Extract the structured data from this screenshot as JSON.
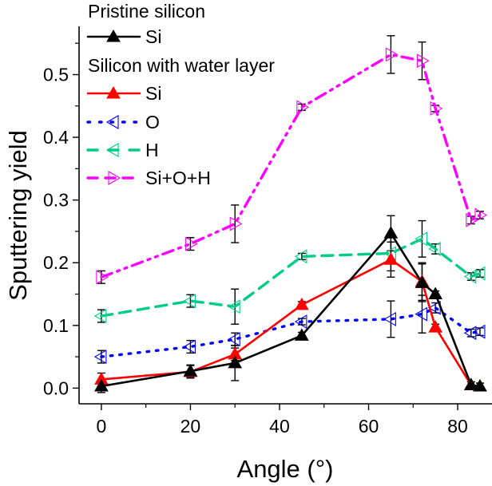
{
  "chart_data": {
    "type": "line",
    "title": "",
    "xlabel": "Angle (°)",
    "ylabel": "Sputtering yield",
    "xlim": [
      -5,
      87.7
    ],
    "ylim": [
      -0.025,
      0.577
    ],
    "xticks": [
      0,
      20,
      40,
      60,
      80
    ],
    "xtick_labels": [
      "0",
      "20",
      "40",
      "60",
      "80"
    ],
    "xminor": [
      10,
      30,
      50,
      70
    ],
    "yticks": [
      0.0,
      0.1,
      0.2,
      0.3,
      0.4,
      0.5
    ],
    "ytick_labels": [
      "0.0",
      "0.1",
      "0.2",
      "0.3",
      "0.4",
      "0.5"
    ],
    "yminor": [
      0.05,
      0.15,
      0.25,
      0.35,
      0.45,
      0.55
    ],
    "grid": false,
    "legend_position": "top-left",
    "legend_groups": [
      {
        "title": "Pristine silicon",
        "entries": [
          0
        ]
      },
      {
        "title": "Silicon with water layer",
        "entries": [
          1,
          2,
          3,
          4
        ]
      }
    ],
    "series": [
      {
        "name": "Si",
        "group": "Pristine silicon",
        "color": "#000000",
        "line": "solid",
        "marker": "triangle-up-filled",
        "x": [
          0,
          20,
          30,
          45,
          65,
          72,
          75,
          83,
          85
        ],
        "y": [
          0.003,
          0.027,
          0.04,
          0.084,
          0.247,
          0.168,
          0.15,
          0.005,
          0.003
        ],
        "err": [
          0.01,
          0.01,
          0.028,
          0.005,
          0.028,
          0.03,
          0.005,
          0.005,
          0.005
        ]
      },
      {
        "name": "Si",
        "group": "Silicon with water layer",
        "color": "#ff0000",
        "line": "solid",
        "marker": "triangle-up-filled",
        "x": [
          0,
          20,
          30,
          45,
          65,
          72,
          75,
          83,
          85
        ],
        "y": [
          0.014,
          0.026,
          0.054,
          0.133,
          0.205,
          0.17,
          0.097,
          0.005,
          0.003
        ],
        "err": [
          0.01,
          0.01,
          0.01,
          0.005,
          0.028,
          0.03,
          0.005,
          0.005,
          0.005
        ]
      },
      {
        "name": "O",
        "group": "Silicon with water layer",
        "color": "#0000ff",
        "line": "dotted",
        "marker": "triangle-left-open",
        "x": [
          0,
          20,
          30,
          45,
          65,
          72,
          75,
          83,
          85
        ],
        "y": [
          0.05,
          0.066,
          0.078,
          0.106,
          0.11,
          0.118,
          0.128,
          0.088,
          0.09
        ],
        "err": [
          0.01,
          0.01,
          0.01,
          0.005,
          0.029,
          0.03,
          0.008,
          0.006,
          0.006
        ]
      },
      {
        "name": "H",
        "group": "Silicon with water layer",
        "color": "#00cc88",
        "line": "dashed",
        "marker": "triangle-left-open",
        "x": [
          0,
          20,
          30,
          45,
          65,
          72,
          75,
          83,
          85
        ],
        "y": [
          0.115,
          0.139,
          0.13,
          0.21,
          0.215,
          0.238,
          0.222,
          0.178,
          0.183
        ],
        "err": [
          0.01,
          0.01,
          0.028,
          0.005,
          0.028,
          0.029,
          0.008,
          0.006,
          0.006
        ]
      },
      {
        "name": "Si+O+H",
        "group": "Silicon with water layer",
        "color": "#ff00ff",
        "line": "dash-dot-dot",
        "marker": "triangle-right-open",
        "x": [
          0,
          20,
          30,
          45,
          65,
          72,
          75,
          83,
          85
        ],
        "y": [
          0.177,
          0.23,
          0.262,
          0.448,
          0.532,
          0.522,
          0.446,
          0.268,
          0.276
        ],
        "err": [
          0.01,
          0.01,
          0.03,
          0.005,
          0.03,
          0.03,
          0.005,
          0.006,
          0.006
        ]
      }
    ]
  }
}
